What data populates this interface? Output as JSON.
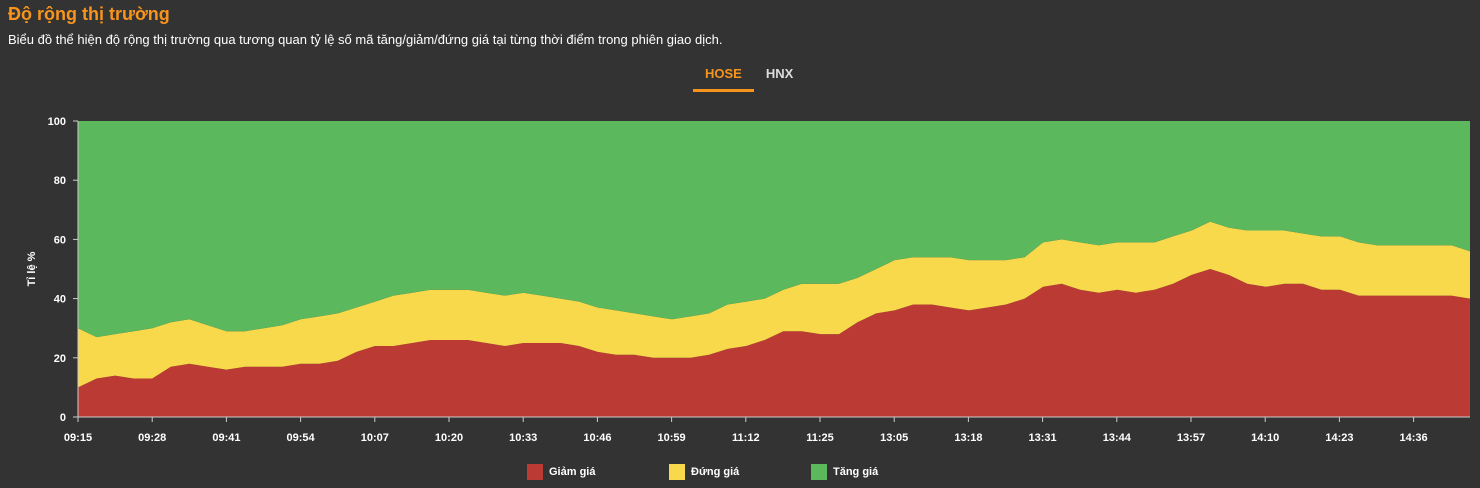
{
  "header": {
    "title": "Độ rộng thị trường",
    "subtitle": "Biểu đồ thể hiện độ rộng thị trường qua tương quan tỷ lệ số mã tăng/giảm/đứng giá tại từng thời điểm trong phiên giao dịch."
  },
  "tabs": [
    {
      "label": "HOSE",
      "active": true
    },
    {
      "label": "HNX",
      "active": false
    }
  ],
  "colors": {
    "decline": "#bc3a34",
    "unchanged": "#f9d94c",
    "advance": "#5cb85c",
    "accent": "#f7941d"
  },
  "chart_data": {
    "type": "area",
    "stacked": true,
    "ylabel": "Tỉ lệ %",
    "ylim": [
      0,
      100
    ],
    "yticks": [
      0,
      20,
      40,
      60,
      80,
      100
    ],
    "xticks": [
      "09:15",
      "09:28",
      "09:41",
      "09:54",
      "10:07",
      "10:20",
      "10:33",
      "10:46",
      "10:59",
      "11:12",
      "11:25",
      "13:05",
      "13:18",
      "13:31",
      "13:44",
      "13:57",
      "14:10",
      "14:23",
      "14:36"
    ],
    "x": [
      "09:15",
      "09:18",
      "09:21",
      "09:24",
      "09:28",
      "09:31",
      "09:34",
      "09:37",
      "09:41",
      "09:44",
      "09:47",
      "09:50",
      "09:54",
      "09:57",
      "10:00",
      "10:03",
      "10:07",
      "10:10",
      "10:13",
      "10:16",
      "10:20",
      "10:23",
      "10:26",
      "10:29",
      "10:33",
      "10:36",
      "10:39",
      "10:42",
      "10:46",
      "10:49",
      "10:52",
      "10:55",
      "10:59",
      "11:02",
      "11:05",
      "11:08",
      "11:12",
      "11:15",
      "11:18",
      "11:21",
      "11:25",
      "11:28",
      "13:00",
      "13:02",
      "13:05",
      "13:08",
      "13:11",
      "13:14",
      "13:18",
      "13:21",
      "13:24",
      "13:27",
      "13:31",
      "13:34",
      "13:37",
      "13:40",
      "13:44",
      "13:47",
      "13:50",
      "13:53",
      "13:57",
      "14:00",
      "14:03",
      "14:06",
      "14:10",
      "14:13",
      "14:16",
      "14:19",
      "14:23",
      "14:26",
      "14:29",
      "14:32",
      "14:36",
      "14:39",
      "14:42",
      "14:45"
    ],
    "series": [
      {
        "name": "Giảm giá",
        "color": "#bc3a34",
        "values": [
          10,
          13,
          14,
          13,
          13,
          17,
          18,
          17,
          16,
          17,
          17,
          17,
          18,
          18,
          19,
          22,
          24,
          24,
          25,
          26,
          26,
          26,
          25,
          24,
          25,
          25,
          25,
          24,
          22,
          21,
          21,
          20,
          20,
          20,
          21,
          23,
          24,
          26,
          29,
          29,
          28,
          28,
          32,
          35,
          36,
          38,
          38,
          37,
          36,
          37,
          38,
          40,
          44,
          45,
          43,
          42,
          43,
          42,
          43,
          45,
          48,
          50,
          48,
          45,
          44,
          45,
          45,
          43,
          43,
          41,
          41,
          41,
          41,
          41,
          41,
          40
        ]
      },
      {
        "name": "Đứng giá",
        "color": "#f9d94c",
        "values": [
          20,
          14,
          14,
          16,
          17,
          15,
          15,
          14,
          13,
          12,
          13,
          14,
          15,
          16,
          16,
          15,
          15,
          17,
          17,
          17,
          17,
          17,
          17,
          17,
          17,
          16,
          15,
          15,
          15,
          15,
          14,
          14,
          13,
          14,
          14,
          15,
          15,
          14,
          14,
          16,
          17,
          17,
          15,
          15,
          17,
          16,
          16,
          17,
          17,
          16,
          15,
          14,
          15,
          15,
          16,
          16,
          16,
          17,
          16,
          16,
          15,
          16,
          16,
          18,
          19,
          18,
          17,
          18,
          18,
          18,
          17,
          17,
          17,
          17,
          17,
          16
        ]
      },
      {
        "name": "Tăng giá",
        "color": "#5cb85c",
        "values": [
          70,
          73,
          72,
          71,
          70,
          68,
          67,
          69,
          71,
          71,
          70,
          69,
          67,
          66,
          65,
          63,
          61,
          59,
          58,
          57,
          57,
          57,
          58,
          59,
          58,
          59,
          60,
          61,
          63,
          64,
          65,
          66,
          67,
          66,
          65,
          62,
          61,
          60,
          57,
          55,
          55,
          55,
          53,
          50,
          47,
          46,
          46,
          46,
          47,
          47,
          47,
          46,
          41,
          40,
          41,
          42,
          41,
          41,
          41,
          39,
          37,
          34,
          36,
          37,
          37,
          37,
          38,
          39,
          39,
          41,
          42,
          42,
          42,
          42,
          42,
          44
        ]
      }
    ]
  },
  "legend": [
    {
      "label": "Giảm giá",
      "color": "#bc3a34"
    },
    {
      "label": "Đứng giá",
      "color": "#f9d94c"
    },
    {
      "label": "Tăng giá",
      "color": "#5cb85c"
    }
  ]
}
